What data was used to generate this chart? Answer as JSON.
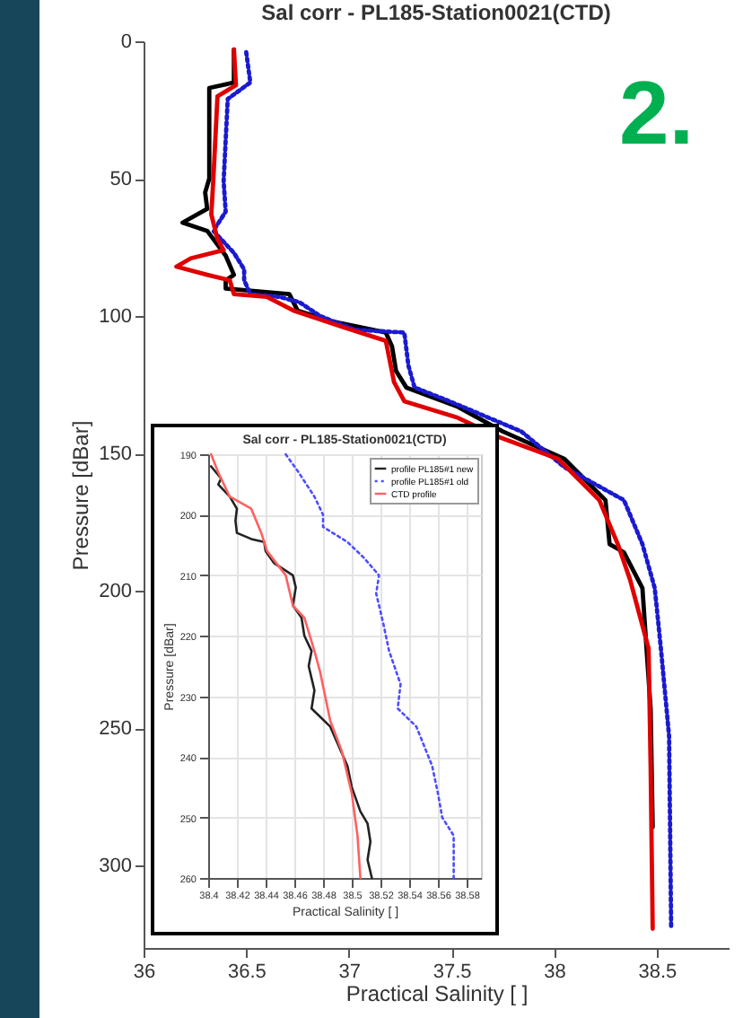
{
  "chart_data": [
    {
      "type": "line",
      "title": "Sal corr - PL185-Station0021(CTD)",
      "xlabel": "Practical Salinity [ ]",
      "ylabel": "Pressure [dBar]",
      "annotations": [
        "2."
      ],
      "xlim": [
        36,
        38.85
      ],
      "ylim": [
        330,
        0
      ],
      "xticks": [
        36,
        36.5,
        37,
        37.5,
        38,
        38.5
      ],
      "yticks": [
        0,
        50,
        100,
        150,
        200,
        250,
        300
      ],
      "grid": false,
      "legend": false,
      "series": [
        {
          "color": "#000000",
          "line_style": "solid",
          "x": [
            36.44,
            36.44,
            36.32,
            36.32,
            36.3,
            36.31,
            36.19,
            36.31,
            36.4,
            36.44,
            36.4,
            36.4,
            36.71,
            36.75,
            36.92,
            37.18,
            37.21,
            37.23,
            37.28,
            37.53,
            37.75,
            38.05,
            38.25,
            38.27,
            38.34,
            38.43,
            38.45,
            38.47,
            38.48
          ],
          "values": [
            3,
            15,
            17,
            50,
            55,
            61,
            66,
            69,
            78,
            85,
            87,
            90,
            92,
            98,
            102,
            106,
            111,
            120,
            126,
            133,
            142,
            152,
            167,
            183,
            186,
            199,
            221,
            243,
            286
          ]
        },
        {
          "color": "#1a1ad0",
          "line_style": "dotted",
          "x": [
            36.5,
            36.52,
            36.41,
            36.39,
            36.4,
            36.34,
            36.44,
            36.49,
            36.49,
            36.52,
            36.66,
            36.76,
            36.86,
            37.03,
            37.27,
            37.29,
            37.32,
            37.49,
            37.84,
            38.05,
            38.34,
            38.43,
            38.49,
            38.52,
            38.56,
            38.57
          ],
          "values": [
            4,
            15,
            21,
            51,
            62,
            69,
            77,
            83,
            87,
            92,
            93,
            95,
            100,
            105,
            106,
            118,
            126,
            131,
            142,
            155,
            167,
            183,
            199,
            221,
            253,
            323
          ]
        },
        {
          "color": "#e00000",
          "line_style": "solid",
          "x": [
            36.44,
            36.45,
            36.36,
            36.34,
            36.33,
            36.36,
            36.39,
            36.23,
            36.16,
            36.31,
            36.42,
            36.44,
            36.6,
            36.73,
            36.97,
            37.18,
            37.22,
            37.27,
            37.53,
            37.73,
            38.02,
            38.22,
            38.31,
            38.37,
            38.46,
            38.47,
            38.48
          ],
          "values": [
            3,
            16,
            20,
            50,
            63,
            72,
            76,
            79,
            82,
            85,
            87,
            92,
            93,
            98,
            104,
            109,
            124,
            131,
            137,
            144,
            152,
            167,
            183,
            196,
            221,
            264,
            323
          ]
        }
      ]
    },
    {
      "type": "line",
      "title": "Sal corr - PL185-Station0021(CTD)",
      "xlabel": "Practical Salinity [ ]",
      "ylabel": "Pressure [dBar]",
      "xlim": [
        38.4,
        38.59
      ],
      "ylim": [
        260,
        190
      ],
      "xticks": [
        38.4,
        38.42,
        38.44,
        38.46,
        38.48,
        38.5,
        38.52,
        38.54,
        38.56,
        38.58
      ],
      "yticks": [
        190,
        200,
        210,
        220,
        230,
        240,
        250,
        260
      ],
      "grid": true,
      "legend": "top right",
      "series": [
        {
          "name": "profile PL185#1 new",
          "color": "#222222",
          "line_style": "solid",
          "x": [
            38.402,
            38.409,
            38.407,
            38.415,
            38.42,
            38.419,
            38.42,
            38.43,
            38.439,
            38.44,
            38.446,
            38.459,
            38.461,
            38.459,
            38.465,
            38.467,
            38.472,
            38.47,
            38.474,
            38.472,
            38.485,
            38.497,
            38.5,
            38.506,
            38.511,
            38.513,
            38.511,
            38.514
          ],
          "values": [
            192,
            194,
            195,
            197,
            199,
            201,
            203,
            204,
            204.5,
            206,
            208,
            210,
            212,
            215,
            217,
            220,
            222.5,
            225,
            229,
            232,
            235,
            241.5,
            245,
            249,
            251,
            254,
            257,
            260
          ]
        },
        {
          "name": "profile PL185#1 old",
          "color": "#4d4dff",
          "line_style": "dotted",
          "x": [
            38.454,
            38.463,
            38.474,
            38.48,
            38.48,
            38.497,
            38.508,
            38.519,
            38.517,
            38.522,
            38.526,
            38.534,
            38.532,
            38.545,
            38.556,
            38.56,
            38.563,
            38.571,
            38.571,
            38.571
          ],
          "values": [
            190,
            193,
            197,
            200,
            202,
            204.5,
            207,
            210,
            213,
            218,
            222.5,
            228,
            232,
            235,
            241.5,
            246,
            250,
            253,
            257,
            260
          ]
        },
        {
          "name": "CTD profile",
          "color": "#ff6060",
          "line_style": "solid",
          "x": [
            38.402,
            38.407,
            38.415,
            38.43,
            38.437,
            38.441,
            38.454,
            38.459,
            38.467,
            38.474,
            38.478,
            38.485,
            38.493,
            38.5,
            38.504,
            38.506
          ],
          "values": [
            190,
            193,
            197,
            199,
            203,
            206,
            210,
            215,
            217,
            222.5,
            226,
            234,
            239,
            246,
            253,
            260
          ]
        }
      ]
    }
  ]
}
